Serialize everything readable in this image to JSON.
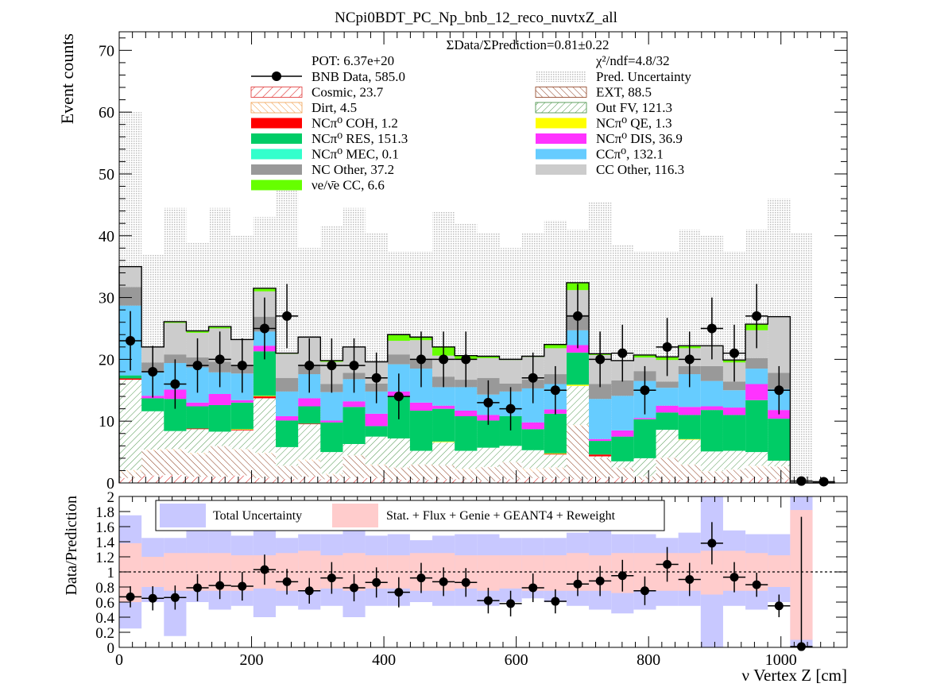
{
  "title": "NCpi0BDT_PC_Np_bnb_12_reco_nuvtxZ_all",
  "summary": {
    "ratio": "ΣData/ΣPrediction=0.81±0.22",
    "pot": "POT: 6.37e+20",
    "chi2": "χ²/ndf=4.8/32"
  },
  "legend": [
    {
      "key": "data",
      "label": "BNB Data, 585.0",
      "color": "#000000",
      "style": "marker"
    },
    {
      "key": "unc",
      "label": "Pred. Uncertainty",
      "color": "#d9d9d9",
      "style": "dots"
    },
    {
      "key": "cosmic",
      "label": "Cosmic, 23.7",
      "color": "#e03030",
      "style": "hatch"
    },
    {
      "key": "ext",
      "label": "EXT, 88.5",
      "color": "#8b3a1a",
      "style": "hatch"
    },
    {
      "key": "dirt",
      "label": "Dirt, 4.5",
      "color": "#f0a050",
      "style": "hatch"
    },
    {
      "key": "outfv",
      "label": "Out FV, 121.3",
      "color": "#3a8a3a",
      "style": "hatch"
    },
    {
      "key": "coh",
      "label": "NCπ⁰ COH,  1.2",
      "color": "#ff0000",
      "style": "fill"
    },
    {
      "key": "qe",
      "label": "NCπ⁰ QE,  1.3",
      "color": "#ffff00",
      "style": "fill"
    },
    {
      "key": "res",
      "label": "NCπ⁰ RES,  151.3",
      "color": "#00cc66",
      "style": "fill"
    },
    {
      "key": "dis",
      "label": "NCπ⁰ DIS,  36.9",
      "color": "#ff33ff",
      "style": "fill"
    },
    {
      "key": "mec",
      "label": "NCπ⁰ MEC,  0.1",
      "color": "#33ffcc",
      "style": "fill"
    },
    {
      "key": "ccpi0",
      "label": "CCπ⁰, 132.1",
      "color": "#66ccff",
      "style": "fill"
    },
    {
      "key": "ncother",
      "label": "NC Other, 37.2",
      "color": "#999999",
      "style": "fill"
    },
    {
      "key": "ccother",
      "label": "CC Other, 116.3",
      "color": "#cccccc",
      "style": "fill"
    },
    {
      "key": "nue",
      "label": "νe/ν̄e CC, 6.6",
      "color": "#66ff00",
      "style": "fill"
    }
  ],
  "ratio_legend": {
    "total": "Total Uncertainty",
    "stat": "Stat. + Flux + Genie + GEANT4 + Reweight"
  },
  "chart_data": {
    "type": "bar",
    "xlabel": "ν Vertex Z [cm]",
    "ylabel": "Event counts",
    "ratio_ylabel": "Data/Prediction",
    "xlim": [
      0,
      1100
    ],
    "ylim": [
      0,
      73
    ],
    "ratio_ylim": [
      0,
      2
    ],
    "x_ticks": [
      0,
      200,
      400,
      600,
      800,
      1000
    ],
    "y_ticks": [
      0,
      10,
      20,
      30,
      40,
      50,
      60,
      70
    ],
    "ratio_ticks": [
      0,
      0.2,
      0.4,
      0.6,
      0.8,
      1,
      1.2,
      1.4,
      1.6,
      1.8,
      2
    ],
    "ratio_tick_labels": [
      "0",
      "0.2",
      "0.4",
      "0.6",
      "0.8",
      "1",
      "1.2",
      "1.4",
      "1.6",
      "1.8",
      "2"
    ],
    "bin_edges": [
      0,
      33.8,
      67.6,
      101.4,
      135.2,
      169,
      202.8,
      236.6,
      270.4,
      304.2,
      338,
      371.8,
      405.6,
      439.4,
      473.2,
      507,
      540.8,
      574.6,
      608.4,
      642.2,
      676,
      709.8,
      743.6,
      777.4,
      811.2,
      845,
      878.8,
      912.6,
      946.4,
      980.2,
      1014,
      1047.8,
      1081.6
    ],
    "stack_order": [
      "cosmic",
      "ext",
      "dirt",
      "outfv",
      "coh",
      "qe",
      "res",
      "dis",
      "mec",
      "ccpi0",
      "ncother",
      "ccother",
      "nue"
    ],
    "stacks": {
      "cosmic": [
        0.8,
        1.2,
        1.3,
        1.0,
        1.0,
        1.2,
        0.8,
        0.6,
        1.0,
        0.6,
        0.8,
        0.8,
        0.5,
        0.5,
        0.6,
        0.6,
        0.3,
        0.6,
        0.8,
        0.8,
        0.6,
        0.8,
        0.8,
        0.5,
        0.4,
        0.5,
        0.4,
        0.5,
        0.8,
        0.6,
        0,
        0
      ],
      "ext": [
        0.9,
        4.0,
        3.9,
        3.6,
        4.9,
        4.1,
        3.9,
        2.1,
        2.5,
        0.7,
        3.6,
        2.0,
        1.9,
        2.4,
        2.2,
        1.4,
        2.2,
        2.7,
        1.0,
        1.5,
        8.6,
        3.2,
        1.6,
        0.5,
        3.6,
        2.4,
        1.4,
        1.6,
        1.7,
        2.0,
        0,
        0
      ],
      "dirt": [
        0.4,
        0.2,
        0.3,
        0.3,
        0.1,
        0.2,
        0.2,
        0.1,
        0.3,
        0.2,
        0.1,
        0.2,
        0.1,
        0.1,
        0.1,
        0.3,
        0.1,
        0.1,
        0.6,
        0.2,
        0.2,
        0.1,
        0.1,
        0.1,
        0.1,
        0.1,
        0.1,
        0.1,
        0.3,
        0.1,
        0,
        0
      ],
      "outfv": [
        14.6,
        6.2,
        2.9,
        3.8,
        2.3,
        3.0,
        8.8,
        3.0,
        5.7,
        3.5,
        1.8,
        4.5,
        4.7,
        2.2,
        3.7,
        2.9,
        3.1,
        2.6,
        2.9,
        2.1,
        6.3,
        0.2,
        1.0,
        2.9,
        4.5,
        4.0,
        3.2,
        3.0,
        2.2,
        0.9,
        0,
        0
      ],
      "coh": [
        0.2,
        0,
        0,
        0.1,
        0,
        0.1,
        0.3,
        0,
        0.1,
        0,
        0,
        0,
        0,
        0,
        0,
        0,
        0,
        0,
        0,
        0.1,
        0,
        0.3,
        0,
        0,
        0,
        0,
        0,
        0,
        0,
        0,
        0,
        0
      ],
      "qe": [
        0,
        0,
        0,
        0,
        0,
        0.1,
        0.1,
        0,
        0,
        0,
        0,
        0,
        0,
        0,
        0.1,
        0,
        0,
        0,
        0,
        0.1,
        0.2,
        0,
        0,
        0,
        0,
        0.1,
        0,
        0,
        0,
        0,
        0,
        0
      ],
      "res": [
        0.5,
        2.1,
        5.2,
        3.6,
        4.3,
        4.3,
        7.2,
        4.3,
        2.8,
        4.8,
        6.0,
        1.7,
        6.8,
        6.5,
        5.3,
        5.6,
        4.4,
        4.8,
        3.4,
        6.4,
        5.2,
        2.2,
        4.0,
        6.3,
        2.8,
        3.9,
        6.7,
        5.8,
        8.4,
        6.8,
        0,
        0
      ],
      "dis": [
        0,
        0.4,
        1.5,
        0.6,
        1.8,
        0.4,
        0.9,
        0.7,
        1.3,
        0.3,
        0.9,
        2.0,
        0.8,
        1.3,
        0.5,
        0.9,
        0.9,
        0,
        1.1,
        0.7,
        1.2,
        0.3,
        1.0,
        0.2,
        1.1,
        1.3,
        0.6,
        1.2,
        2.6,
        1.4,
        0,
        0
      ],
      "mec": [
        0,
        0,
        0,
        0,
        0,
        0,
        0,
        0,
        0,
        0,
        0,
        0,
        0,
        0,
        0,
        0,
        0,
        0,
        0,
        0,
        0,
        0,
        0,
        0,
        0,
        0,
        0,
        0,
        0,
        0,
        0,
        0
      ],
      "ccpi0": [
        11.3,
        3.8,
        4.3,
        5.7,
        3.5,
        4.3,
        2.3,
        4.0,
        3.9,
        4.6,
        3.6,
        3.6,
        4.4,
        5.5,
        3.0,
        3.8,
        3.3,
        4.0,
        5.5,
        4.1,
        2.4,
        6.5,
        5.6,
        6.0,
        2.9,
        5.3,
        4.1,
        2.8,
        2.5,
        3.4,
        0,
        0
      ],
      "ncother": [
        3.0,
        1.6,
        1.4,
        1.6,
        1.7,
        1.3,
        2.4,
        2.2,
        1.6,
        1.3,
        1.0,
        1.3,
        1.6,
        1.5,
        1.7,
        1.2,
        2.7,
        1.3,
        1.4,
        1.6,
        2.5,
        2.4,
        2.5,
        1.6,
        1.0,
        1.3,
        2.4,
        1.4,
        1.7,
        2.6,
        0,
        0
      ],
      "ccother": [
        3.3,
        2.5,
        5.1,
        4.0,
        5.4,
        4.2,
        4.1,
        3.9,
        4.4,
        3.6,
        4.2,
        3.5,
        2.2,
        3.1,
        3.4,
        3.3,
        3.2,
        3.8,
        3.7,
        4.2,
        4.0,
        4.7,
        3.2,
        2.2,
        3.5,
        2.9,
        3.2,
        3.1,
        4.5,
        9.1,
        0,
        0
      ],
      "nue": [
        0,
        0,
        0.2,
        0.3,
        0.3,
        0,
        0.5,
        0.1,
        0,
        0.2,
        0,
        0,
        1.0,
        0.5,
        1.4,
        0.6,
        0.3,
        0.1,
        0.1,
        0.6,
        1.2,
        0.2,
        0,
        0.4,
        0.5,
        0.4,
        0.1,
        0.4,
        1.0,
        0,
        0,
        0
      ]
    },
    "prediction_uncertainty_upper": [
      60,
      37,
      44.5,
      39,
      44.5,
      40,
      43,
      48,
      38,
      41.5,
      44.5,
      40.5,
      37.5,
      37.5,
      44,
      42,
      40.5,
      38,
      40.5,
      42.5,
      41,
      45.5,
      38.5,
      37.5,
      37.5,
      41,
      40,
      37.5,
      41,
      46,
      40.5,
      0.5
    ],
    "data": {
      "x": [
        16.9,
        50.7,
        84.5,
        118.3,
        152.1,
        185.9,
        219.7,
        253.5,
        287.3,
        321.1,
        354.9,
        388.7,
        422.5,
        456.3,
        490.1,
        523.9,
        557.7,
        591.5,
        625.3,
        659.1,
        692.9,
        726.7,
        760.5,
        794.3,
        828.1,
        861.9,
        895.7,
        929.5,
        963.3,
        997.1,
        1030.9,
        1064.7
      ],
      "y": [
        23,
        18,
        16,
        19,
        20,
        19,
        25,
        27,
        19,
        19,
        19,
        17,
        14,
        20,
        20,
        20,
        13,
        12,
        17,
        15,
        27,
        20,
        21,
        15,
        22,
        20,
        25,
        21,
        27,
        15,
        0.3,
        0.2
      ],
      "err": [
        4.8,
        4.2,
        4.0,
        4.4,
        4.5,
        4.4,
        5.0,
        5.2,
        4.4,
        4.4,
        4.4,
        4.1,
        3.7,
        4.5,
        4.5,
        4.5,
        3.6,
        3.5,
        4.1,
        3.9,
        5.2,
        4.5,
        4.6,
        3.9,
        4.7,
        4.5,
        5.0,
        4.6,
        5.2,
        3.9,
        0.6,
        0.6
      ]
    },
    "ratio": {
      "y": [
        0.67,
        0.65,
        0.66,
        0.79,
        0.82,
        0.81,
        1.03,
        0.87,
        0.75,
        0.92,
        0.79,
        0.86,
        0.73,
        0.92,
        0.87,
        0.86,
        0.62,
        0.58,
        0.79,
        0.61,
        0.84,
        0.88,
        0.95,
        0.75,
        1.1,
        0.9,
        1.38,
        0.93,
        0.83,
        0.55,
        0.01
      ],
      "err": [
        0.14,
        0.16,
        0.16,
        0.18,
        0.18,
        0.19,
        0.2,
        0.17,
        0.17,
        0.21,
        0.18,
        0.2,
        0.2,
        0.2,
        0.19,
        0.19,
        0.17,
        0.17,
        0.19,
        0.16,
        0.16,
        0.2,
        0.21,
        0.19,
        0.23,
        0.22,
        0.28,
        0.2,
        0.16,
        0.15,
        1.72
      ],
      "total_band": [
        [
          0.25,
          1.75
        ],
        [
          0.6,
          1.45
        ],
        [
          0.15,
          1.45
        ],
        [
          0.6,
          1.55
        ],
        [
          0.5,
          1.55
        ],
        [
          0.55,
          1.48
        ],
        [
          0.4,
          1.55
        ],
        [
          0.55,
          1.45
        ],
        [
          0.5,
          1.5
        ],
        [
          0.55,
          1.5
        ],
        [
          0.4,
          1.55
        ],
        [
          0.55,
          1.48
        ],
        [
          0.55,
          1.5
        ],
        [
          0.6,
          1.42
        ],
        [
          0.55,
          1.48
        ],
        [
          0.55,
          1.5
        ],
        [
          0.55,
          1.5
        ],
        [
          0.6,
          1.45
        ],
        [
          0.65,
          1.45
        ],
        [
          0.6,
          1.45
        ],
        [
          0.55,
          1.52
        ],
        [
          0.5,
          1.55
        ],
        [
          0.45,
          1.5
        ],
        [
          0.5,
          1.5
        ],
        [
          0.55,
          1.45
        ],
        [
          0.55,
          1.52
        ],
        [
          0,
          2
        ],
        [
          0.55,
          1.55
        ],
        [
          0.5,
          1.5
        ],
        [
          0.6,
          1.5
        ],
        [
          0,
          2
        ]
      ],
      "stat_band": [
        [
          0.6,
          1.38
        ],
        [
          0.8,
          1.2
        ],
        [
          0.75,
          1.25
        ],
        [
          0.75,
          1.25
        ],
        [
          0.75,
          1.25
        ],
        [
          0.75,
          1.22
        ],
        [
          0.78,
          1.22
        ],
        [
          0.75,
          1.25
        ],
        [
          0.75,
          1.28
        ],
        [
          0.78,
          1.22
        ],
        [
          0.75,
          1.25
        ],
        [
          0.78,
          1.22
        ],
        [
          0.78,
          1.22
        ],
        [
          0.75,
          1.25
        ],
        [
          0.75,
          1.25
        ],
        [
          0.78,
          1.22
        ],
        [
          0.75,
          1.22
        ],
        [
          0.78,
          1.22
        ],
        [
          0.75,
          1.22
        ],
        [
          0.75,
          1.22
        ],
        [
          0.75,
          1.25
        ],
        [
          0.75,
          1.22
        ],
        [
          0.72,
          1.25
        ],
        [
          0.75,
          1.25
        ],
        [
          0.75,
          1.25
        ],
        [
          0.75,
          1.25
        ],
        [
          0.7,
          1.28
        ],
        [
          0.75,
          1.28
        ],
        [
          0.75,
          1.25
        ],
        [
          0.8,
          1.22
        ],
        [
          0.1,
          1.82
        ]
      ]
    }
  }
}
